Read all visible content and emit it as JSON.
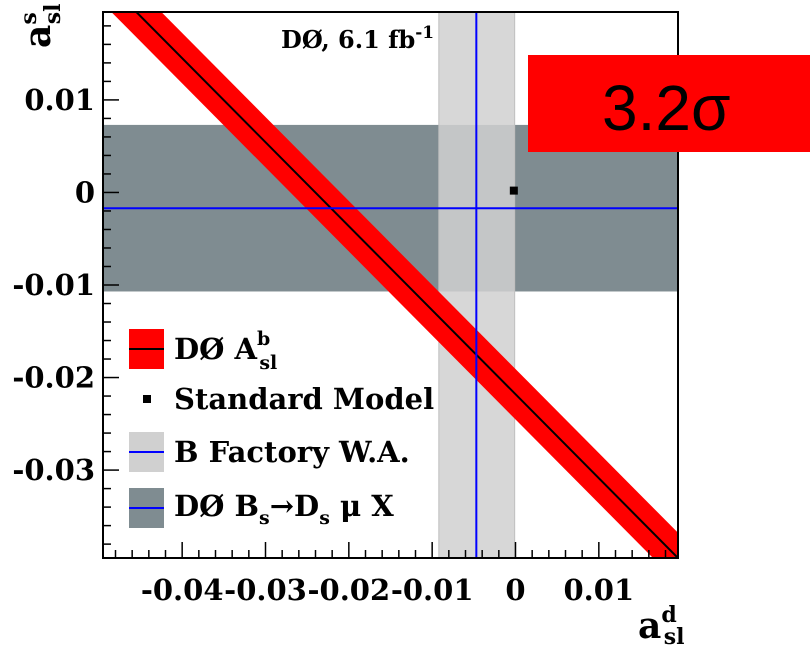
{
  "chart_data": {
    "type": "area",
    "experiment_label": {
      "main": "DØ, 6.1 fb",
      "superscript": "-1"
    },
    "badge": {
      "text": "3.2σ",
      "color": "#ff0000"
    },
    "xaxis": {
      "symbol": "a",
      "superscript": "d",
      "subscript": "sl",
      "range": [
        -0.0495,
        0.0195
      ],
      "ticks": [
        -0.04,
        -0.03,
        -0.02,
        -0.01,
        0,
        0.01
      ],
      "tick_labels": [
        "-0.04",
        "-0.03",
        "-0.02",
        "-0.01",
        "0",
        "0.01"
      ]
    },
    "yaxis": {
      "symbol": "a",
      "superscript": "s",
      "subscript": "sl",
      "range": [
        -0.0395,
        0.0195
      ],
      "ticks": [
        0.01,
        0,
        -0.01,
        -0.02,
        -0.03
      ],
      "tick_labels": [
        "0.01",
        "0",
        "-0.01",
        "-0.02",
        "-0.03"
      ]
    },
    "grid": false,
    "series": [
      {
        "name": "DØ A_sl^b",
        "kind": "band",
        "central_line": [
          [
            -0.0455,
            0.0195
          ],
          [
            0.0195,
            -0.0395
          ]
        ],
        "band_half_width_x": 0.003,
        "fill": "#ff0000",
        "line": "#000000"
      },
      {
        "name": "Standard Model",
        "kind": "point",
        "x": -0.0002,
        "y": 0.0002,
        "color": "#000000"
      },
      {
        "name": "B Factory W.A.",
        "kind": "vertical_band",
        "center": -0.0047,
        "range": [
          -0.0092,
          -0.0001
        ],
        "fill": "#d0d0d0",
        "line": "#0000ff"
      },
      {
        "name": "DØ B_s→D_s μ X",
        "kind": "horizontal_band",
        "center": -0.0017,
        "range": [
          -0.0107,
          0.0073
        ],
        "fill": "#7f8c91",
        "line": "#0000ff"
      }
    ],
    "legend": {
      "placement": "bottom-left",
      "entries": [
        {
          "series": "DØ A_sl^b",
          "main": "DØ A",
          "superscript": "b",
          "subscript": "sl"
        },
        {
          "series": "Standard Model",
          "main": "Standard Model"
        },
        {
          "series": "B Factory W.A.",
          "main": "B Factory W.A."
        },
        {
          "series": "DØ B_s→D_s μ X",
          "main": "DØ B",
          "sub1": "s",
          "mid": "→D",
          "sub2": "s",
          "tail": " μ X"
        }
      ]
    }
  }
}
